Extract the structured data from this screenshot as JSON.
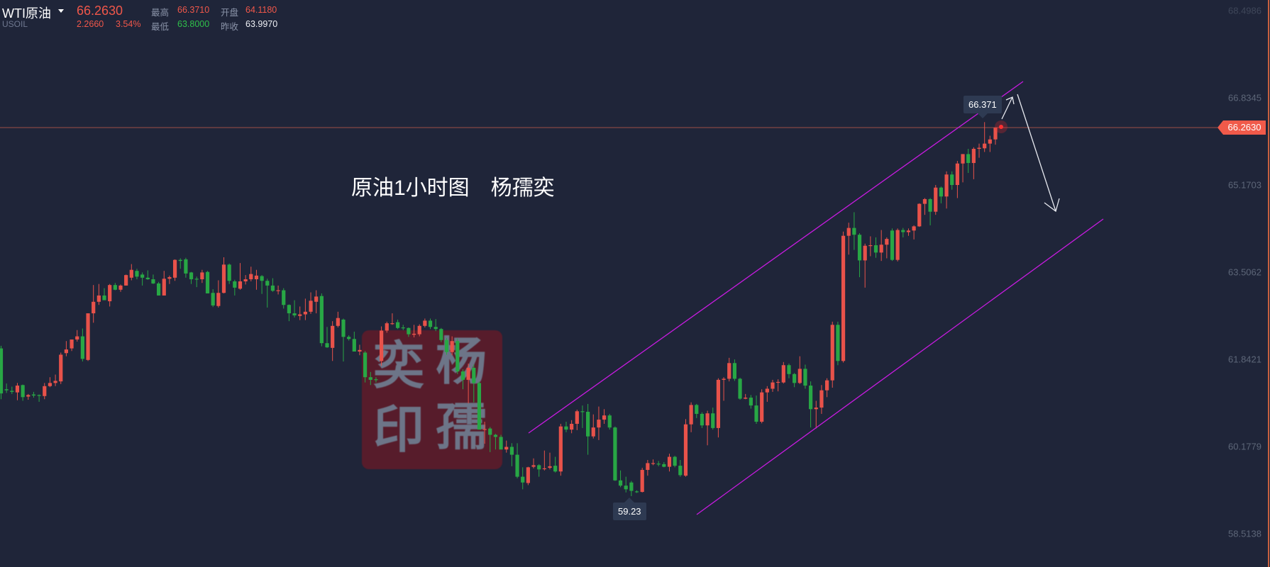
{
  "header": {
    "symbol_name": "WTI原油",
    "symbol_code": "USOIL",
    "last_price": "66.2630",
    "change": "2.2660",
    "change_pct": "3.54%",
    "high_label": "最高",
    "high": "66.3710",
    "open_label": "开盘",
    "open": "64.1180",
    "low_label": "最低",
    "low": "63.8000",
    "prev_close_label": "昨收",
    "prev_close": "63.9970"
  },
  "annotation_text": "原油1小时图　杨孺奕",
  "watermark": {
    "chars": [
      "奕",
      "杨",
      "印",
      "孺"
    ]
  },
  "price_axis": {
    "ticks": [
      "68.4986",
      "66.8345",
      "65.1703",
      "63.5062",
      "61.8421",
      "60.1779",
      "58.5138"
    ],
    "current_price_tag": "66.2630"
  },
  "markers": {
    "high_label": "66.371",
    "low_label": "59.23"
  },
  "colors": {
    "up": "#e8524a",
    "down": "#28a745",
    "channel": "#c71be0",
    "background": "#1f2539",
    "price_line": "#9c4e48"
  },
  "chart_data": {
    "type": "candlestick",
    "ylim": [
      58.0,
      69.0
    ],
    "current_price": 66.263,
    "ticks": [
      68.4986,
      66.8345,
      65.1703,
      63.5062,
      61.8421,
      60.1779,
      58.5138
    ],
    "ohlc": [
      [
        62.05,
        62.1,
        61.08,
        61.19
      ],
      [
        61.27,
        61.38,
        61.2,
        61.25
      ],
      [
        61.24,
        61.32,
        61.18,
        61.22
      ],
      [
        61.21,
        61.39,
        61.06,
        61.34
      ],
      [
        61.35,
        61.36,
        61.05,
        61.12
      ],
      [
        61.13,
        61.18,
        61.07,
        61.16
      ],
      [
        61.17,
        61.22,
        61.11,
        61.15
      ],
      [
        61.16,
        61.17,
        61.03,
        61.15
      ],
      [
        61.14,
        61.39,
        61.08,
        61.33
      ],
      [
        61.33,
        61.5,
        61.31,
        61.39
      ],
      [
        61.39,
        61.55,
        61.33,
        61.43
      ],
      [
        61.42,
        61.97,
        61.37,
        61.93
      ],
      [
        61.96,
        62.19,
        61.9,
        62.03
      ],
      [
        62.05,
        62.22,
        62.0,
        62.22
      ],
      [
        62.22,
        62.4,
        62.18,
        62.28
      ],
      [
        62.28,
        62.43,
        61.8,
        61.85
      ],
      [
        61.83,
        62.72,
        61.81,
        62.72
      ],
      [
        62.72,
        63.26,
        62.54,
        62.94
      ],
      [
        62.94,
        63.28,
        62.88,
        63.06
      ],
      [
        63.06,
        63.2,
        63.05,
        62.97
      ],
      [
        62.95,
        63.28,
        62.85,
        63.26
      ],
      [
        63.26,
        63.3,
        63.16,
        63.17
      ],
      [
        63.17,
        63.27,
        63.13,
        63.25
      ],
      [
        63.25,
        63.46,
        63.25,
        63.45
      ],
      [
        63.4,
        63.66,
        63.35,
        63.55
      ],
      [
        63.53,
        63.57,
        63.37,
        63.42
      ],
      [
        63.46,
        63.5,
        63.25,
        63.4
      ],
      [
        63.4,
        63.54,
        63.36,
        63.37
      ],
      [
        63.37,
        63.46,
        63.28,
        63.29
      ],
      [
        63.29,
        63.32,
        63.06,
        63.06
      ],
      [
        63.06,
        63.53,
        63.06,
        63.38
      ],
      [
        63.38,
        63.44,
        63.28,
        63.41
      ],
      [
        63.4,
        63.75,
        63.34,
        63.74
      ],
      [
        63.74,
        63.77,
        63.57,
        63.72
      ],
      [
        63.75,
        63.78,
        63.4,
        63.48
      ],
      [
        63.5,
        63.51,
        63.28,
        63.37
      ],
      [
        63.38,
        63.42,
        63.22,
        63.37
      ],
      [
        63.37,
        63.55,
        63.3,
        63.5
      ],
      [
        63.51,
        63.53,
        63.1,
        63.1
      ],
      [
        63.11,
        63.18,
        62.84,
        62.87
      ],
      [
        62.86,
        63.35,
        62.83,
        63.11
      ],
      [
        63.11,
        63.79,
        63.1,
        63.65
      ],
      [
        63.65,
        63.67,
        63.28,
        63.34
      ],
      [
        63.33,
        63.36,
        63.06,
        63.21
      ],
      [
        63.19,
        63.68,
        63.17,
        63.33
      ],
      [
        63.33,
        63.45,
        63.27,
        63.37
      ],
      [
        63.37,
        63.61,
        63.33,
        63.47
      ],
      [
        63.37,
        63.55,
        63.17,
        63.44
      ],
      [
        63.43,
        63.45,
        63.09,
        63.34
      ],
      [
        63.34,
        63.38,
        62.83,
        63.25
      ],
      [
        63.25,
        63.39,
        63.13,
        63.15
      ],
      [
        63.15,
        63.25,
        63.08,
        63.16
      ],
      [
        63.16,
        63.2,
        62.81,
        62.88
      ],
      [
        62.88,
        62.89,
        62.57,
        62.72
      ],
      [
        62.72,
        62.97,
        62.64,
        62.68
      ],
      [
        62.67,
        62.85,
        62.59,
        62.7
      ],
      [
        62.7,
        63.0,
        62.59,
        62.75
      ],
      [
        62.75,
        63.12,
        62.71,
        62.96
      ],
      [
        62.94,
        63.16,
        62.72,
        63.04
      ],
      [
        63.05,
        63.1,
        62.09,
        62.15
      ],
      [
        62.15,
        62.46,
        62.06,
        62.07
      ],
      [
        62.06,
        62.57,
        61.81,
        62.48
      ],
      [
        62.48,
        62.75,
        62.45,
        62.63
      ],
      [
        62.6,
        62.62,
        61.8,
        62.27
      ],
      [
        62.27,
        62.3,
        62.2,
        62.23
      ],
      [
        62.23,
        62.37,
        61.99,
        61.99
      ],
      [
        61.99,
        62.12,
        61.92,
        62.02
      ],
      [
        61.97,
        62.0,
        61.4,
        61.5
      ],
      [
        61.5,
        61.6,
        61.35,
        61.45
      ],
      [
        61.46,
        61.5,
        61.4,
        61.45
      ],
      [
        61.81,
        62.47,
        61.72,
        62.39
      ],
      [
        62.39,
        62.56,
        62.35,
        62.53
      ],
      [
        62.52,
        62.72,
        62.5,
        62.53
      ],
      [
        62.55,
        62.6,
        62.42,
        62.44
      ],
      [
        62.45,
        62.5,
        62.4,
        62.44
      ],
      [
        62.44,
        62.45,
        62.27,
        62.32
      ],
      [
        62.31,
        62.5,
        62.26,
        62.33
      ],
      [
        62.32,
        62.51,
        62.28,
        62.48
      ],
      [
        62.48,
        62.62,
        62.45,
        62.58
      ],
      [
        62.58,
        62.62,
        62.42,
        62.46
      ],
      [
        62.46,
        62.61,
        62.38,
        62.42
      ],
      [
        62.42,
        62.44,
        62.17,
        62.21
      ],
      [
        62.21,
        62.25,
        61.93,
        61.98
      ],
      [
        61.98,
        62.28,
        61.92,
        62.19
      ],
      [
        62.19,
        62.24,
        61.56,
        61.61
      ],
      [
        61.61,
        61.65,
        61.27,
        61.45
      ],
      [
        61.45,
        61.76,
        61.0,
        61.68
      ],
      [
        61.68,
        61.74,
        61.02,
        61.39
      ],
      [
        61.39,
        61.42,
        60.5,
        60.5
      ],
      [
        60.5,
        60.65,
        60.23,
        60.51
      ],
      [
        60.52,
        60.55,
        60.07,
        60.4
      ],
      [
        60.4,
        60.42,
        60.12,
        60.36
      ],
      [
        60.36,
        60.4,
        60.12,
        60.12
      ],
      [
        60.12,
        60.29,
        60.06,
        60.17
      ],
      [
        60.17,
        60.24,
        59.8,
        60.02
      ],
      [
        60.02,
        60.24,
        59.57,
        59.6
      ],
      [
        59.6,
        59.78,
        59.36,
        59.49
      ],
      [
        59.48,
        59.79,
        59.44,
        59.78
      ],
      [
        59.79,
        59.95,
        59.76,
        59.82
      ],
      [
        59.82,
        59.84,
        59.6,
        59.74
      ],
      [
        59.75,
        60.1,
        59.72,
        59.76
      ],
      [
        59.77,
        60.06,
        59.74,
        59.8
      ],
      [
        59.81,
        59.98,
        59.68,
        59.7
      ],
      [
        59.7,
        60.61,
        59.62,
        60.56
      ],
      [
        60.56,
        60.65,
        60.45,
        60.5
      ],
      [
        60.5,
        60.68,
        60.43,
        60.61
      ],
      [
        60.61,
        60.88,
        60.49,
        60.85
      ],
      [
        60.85,
        60.96,
        60.53,
        60.84
      ],
      [
        60.84,
        60.99,
        60.02,
        60.37
      ],
      [
        60.37,
        60.79,
        60.33,
        60.54
      ],
      [
        60.54,
        60.94,
        60.3,
        60.69
      ],
      [
        60.69,
        60.89,
        60.61,
        60.77
      ],
      [
        60.77,
        60.8,
        60.5,
        60.54
      ],
      [
        60.54,
        60.56,
        59.52,
        59.53
      ],
      [
        59.53,
        59.72,
        59.4,
        59.43
      ],
      [
        59.43,
        59.6,
        59.3,
        59.36
      ],
      [
        59.49,
        59.52,
        59.23,
        59.33
      ],
      [
        59.32,
        59.34,
        59.29,
        59.31
      ],
      [
        59.31,
        59.77,
        59.3,
        59.73
      ],
      [
        59.73,
        59.92,
        59.62,
        59.86
      ],
      [
        59.86,
        59.93,
        59.82,
        59.86
      ],
      [
        59.85,
        59.9,
        59.8,
        59.84
      ],
      [
        59.84,
        59.88,
        59.78,
        59.79
      ],
      [
        59.79,
        60.04,
        59.7,
        59.98
      ],
      [
        59.98,
        60.0,
        59.78,
        59.81
      ],
      [
        59.81,
        59.92,
        59.6,
        59.63
      ],
      [
        59.62,
        60.7,
        59.6,
        60.6
      ],
      [
        60.6,
        61.02,
        60.45,
        60.97
      ],
      [
        60.97,
        60.99,
        60.72,
        60.8
      ],
      [
        60.8,
        60.83,
        60.53,
        60.58
      ],
      [
        60.58,
        60.86,
        60.2,
        60.81
      ],
      [
        60.81,
        60.92,
        60.5,
        60.53
      ],
      [
        60.53,
        61.48,
        60.35,
        61.45
      ],
      [
        61.45,
        61.5,
        61.05,
        61.47
      ],
      [
        61.47,
        61.87,
        61.42,
        61.77
      ],
      [
        61.77,
        61.84,
        61.43,
        61.47
      ],
      [
        61.47,
        61.49,
        61.07,
        61.09
      ],
      [
        61.09,
        61.18,
        61.08,
        61.11
      ],
      [
        61.11,
        61.16,
        60.9,
        60.96
      ],
      [
        60.96,
        61.15,
        60.61,
        60.65
      ],
      [
        60.65,
        61.27,
        60.62,
        61.21
      ],
      [
        61.21,
        61.33,
        61.03,
        61.28
      ],
      [
        61.28,
        61.45,
        61.22,
        61.4
      ],
      [
        61.41,
        61.46,
        61.23,
        61.41
      ],
      [
        61.4,
        61.79,
        61.38,
        61.73
      ],
      [
        61.73,
        61.76,
        61.48,
        61.56
      ],
      [
        61.56,
        61.58,
        61.31,
        61.39
      ],
      [
        61.39,
        61.9,
        61.37,
        61.66
      ],
      [
        61.66,
        61.74,
        61.28,
        61.34
      ],
      [
        61.34,
        61.42,
        60.54,
        60.89
      ],
      [
        60.89,
        61.05,
        60.52,
        60.92
      ],
      [
        60.92,
        61.35,
        60.8,
        61.25
      ],
      [
        61.25,
        61.48,
        61.12,
        61.44
      ],
      [
        61.44,
        62.56,
        61.3,
        62.5
      ],
      [
        62.5,
        62.56,
        61.73,
        61.81
      ],
      [
        61.81,
        64.28,
        61.78,
        64.2
      ],
      [
        64.2,
        64.45,
        63.84,
        64.35
      ],
      [
        64.35,
        64.65,
        63.93,
        64.22
      ],
      [
        64.22,
        64.25,
        63.41,
        63.73
      ],
      [
        63.73,
        64.05,
        63.21,
        64.01
      ],
      [
        64.01,
        64.19,
        63.81,
        64.02
      ],
      [
        64.02,
        64.17,
        63.78,
        63.88
      ],
      [
        63.88,
        64.31,
        63.72,
        64.03
      ],
      [
        64.03,
        64.17,
        63.77,
        64.14
      ],
      [
        64.3,
        64.34,
        63.72,
        63.74
      ],
      [
        63.74,
        64.34,
        63.71,
        64.31
      ],
      [
        64.31,
        64.35,
        64.17,
        64.27
      ],
      [
        64.27,
        64.34,
        64.2,
        64.3
      ],
      [
        64.3,
        64.4,
        64.13,
        64.38
      ],
      [
        64.38,
        64.82,
        64.37,
        64.81
      ],
      [
        64.81,
        64.92,
        64.6,
        64.9
      ],
      [
        64.9,
        64.92,
        64.4,
        64.66
      ],
      [
        64.66,
        65.17,
        64.6,
        65.12
      ],
      [
        65.12,
        65.14,
        64.82,
        64.95
      ],
      [
        64.95,
        65.43,
        64.72,
        65.37
      ],
      [
        65.37,
        65.43,
        65.08,
        65.17
      ],
      [
        65.17,
        65.63,
        64.92,
        65.58
      ],
      [
        65.58,
        65.76,
        65.22,
        65.76
      ],
      [
        65.76,
        65.86,
        65.4,
        65.59
      ],
      [
        65.59,
        65.89,
        65.28,
        65.86
      ],
      [
        65.86,
        65.96,
        65.69,
        65.88
      ],
      [
        65.87,
        66.37,
        65.8,
        65.96
      ],
      [
        65.96,
        66.11,
        65.8,
        66.04
      ],
      [
        66.04,
        66.21,
        65.94,
        66.263
      ]
    ]
  }
}
